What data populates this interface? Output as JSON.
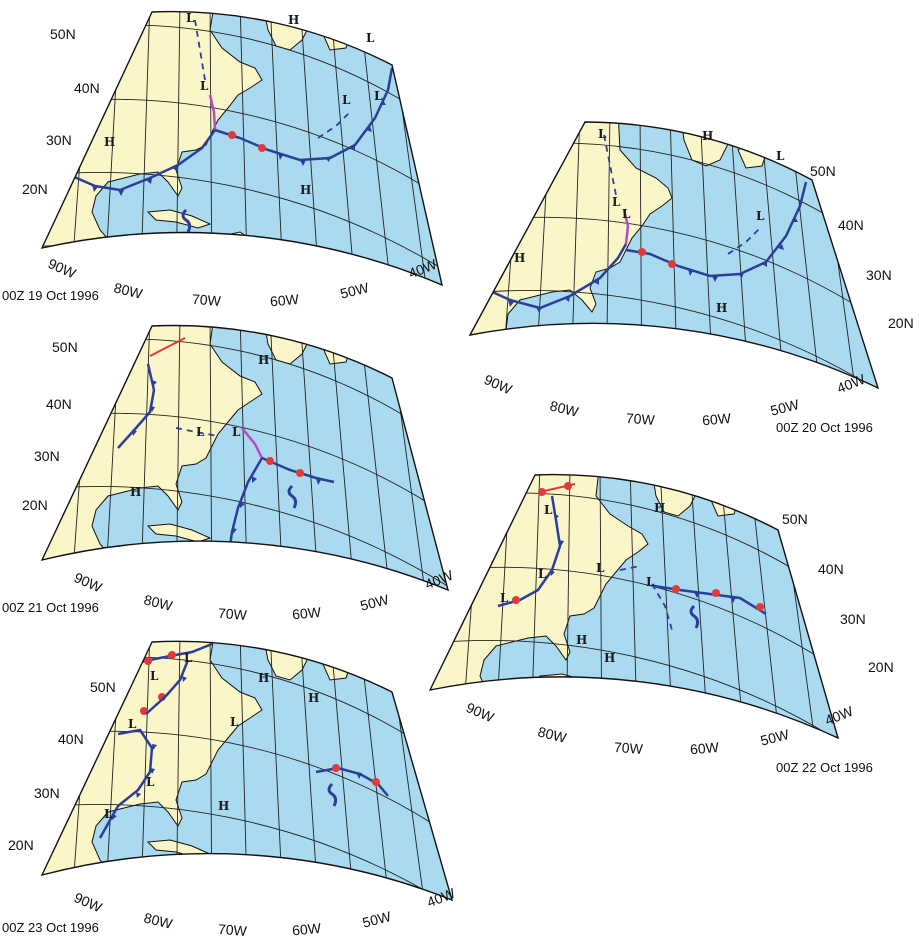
{
  "panels": [
    {
      "date": "00Z 19 Oct 1996",
      "lat_labels": [
        "50N",
        "40N",
        "30N",
        "20N"
      ],
      "lon_labels": [
        "90W",
        "80W",
        "70W",
        "60W",
        "50W",
        "40W"
      ],
      "symbols": [
        {
          "text": "L",
          "kind": "low"
        },
        {
          "text": "H",
          "kind": "high"
        },
        {
          "text": "L",
          "kind": "low"
        },
        {
          "text": "L",
          "kind": "low"
        },
        {
          "text": "L",
          "kind": "low"
        },
        {
          "text": "L",
          "kind": "low"
        },
        {
          "text": "H",
          "kind": "high"
        },
        {
          "text": "H",
          "kind": "high"
        }
      ]
    },
    {
      "date": "00Z 20 Oct 1996",
      "lat_labels": [
        "50N",
        "40N",
        "30N",
        "20N"
      ],
      "lon_labels": [
        "90W",
        "80W",
        "70W",
        "60W",
        "50W",
        "40W"
      ],
      "symbols": [
        {
          "text": "L",
          "kind": "low"
        },
        {
          "text": "H",
          "kind": "high"
        },
        {
          "text": "L",
          "kind": "low"
        },
        {
          "text": "L",
          "kind": "low"
        },
        {
          "text": "L",
          "kind": "low"
        },
        {
          "text": "L",
          "kind": "low"
        },
        {
          "text": "H",
          "kind": "high"
        },
        {
          "text": "H",
          "kind": "high"
        }
      ]
    },
    {
      "date": "00Z 21 Oct 1996",
      "lat_labels": [
        "50N",
        "40N",
        "30N",
        "20N"
      ],
      "lon_labels": [
        "90W",
        "80W",
        "70W",
        "60W",
        "50W",
        "40W"
      ],
      "symbols": [
        {
          "text": "H",
          "kind": "high"
        },
        {
          "text": "L",
          "kind": "low"
        },
        {
          "text": "L",
          "kind": "low"
        },
        {
          "text": "H",
          "kind": "high"
        }
      ]
    },
    {
      "date": "00Z 22 Oct 1996",
      "lat_labels": [
        "50N",
        "40N",
        "30N",
        "20N"
      ],
      "lon_labels": [
        "90W",
        "80W",
        "70W",
        "60W",
        "50W",
        "40W"
      ],
      "symbols": [
        {
          "text": "L",
          "kind": "low"
        },
        {
          "text": "H",
          "kind": "high"
        },
        {
          "text": "L",
          "kind": "low"
        },
        {
          "text": "L",
          "kind": "low"
        },
        {
          "text": "L",
          "kind": "low"
        },
        {
          "text": "L",
          "kind": "low"
        },
        {
          "text": "H",
          "kind": "high"
        },
        {
          "text": "H",
          "kind": "high"
        }
      ]
    },
    {
      "date": "00Z 23 Oct 1996",
      "lat_labels": [
        "50N",
        "40N",
        "30N",
        "20N"
      ],
      "lon_labels": [
        "90W",
        "80W",
        "70W",
        "60W",
        "50W",
        "40W"
      ],
      "symbols": [
        {
          "text": "L",
          "kind": "low"
        },
        {
          "text": "L",
          "kind": "low"
        },
        {
          "text": "H",
          "kind": "high"
        },
        {
          "text": "H",
          "kind": "high"
        },
        {
          "text": "L",
          "kind": "low"
        },
        {
          "text": "L",
          "kind": "low"
        },
        {
          "text": "L",
          "kind": "low"
        },
        {
          "text": "L",
          "kind": "low"
        },
        {
          "text": "H",
          "kind": "high"
        }
      ]
    }
  ],
  "colors": {
    "ocean": "#a9daf0",
    "land": "#fbf6c8",
    "outline": "#111111",
    "grid": "#222222",
    "cold_front": "#2b3e9c",
    "warm_front": "#e03a3a",
    "occluded_front": "#b24cc0"
  }
}
